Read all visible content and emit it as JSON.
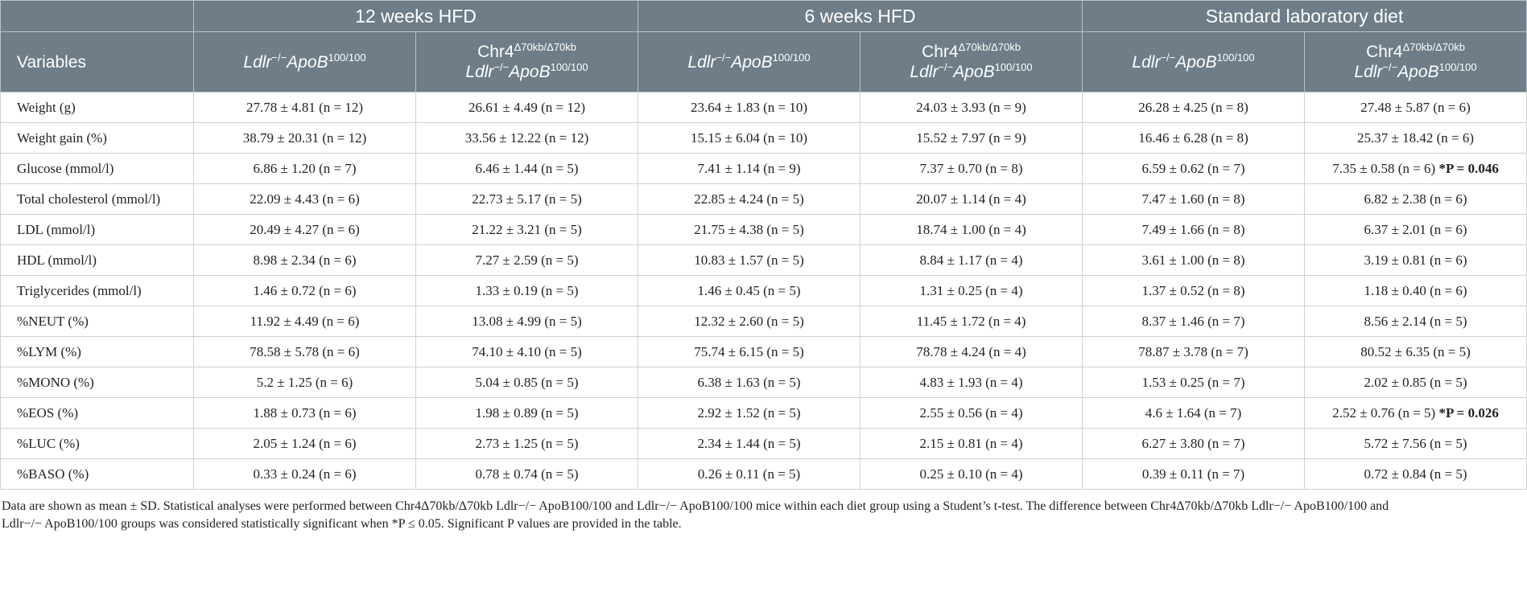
{
  "groups": [
    "12 weeks HFD",
    "6 weeks HFD",
    "Standard laboratory diet"
  ],
  "header": {
    "variables": "Variables",
    "col_wt": "Ldlr−/−ApoB100/100",
    "col_ko_line1": "Chr4Δ70kb/Δ70kb",
    "col_ko_line2": "Ldlr−/−ApoB100/100"
  },
  "rows": [
    {
      "label": "Weight (g)",
      "cells": [
        "27.78 ± 4.81 (n = 12)",
        "26.61 ± 4.49 (n = 12)",
        "23.64 ± 1.83 (n = 10)",
        "24.03 ± 3.93 (n = 9)",
        "26.28 ± 4.25 (n = 8)",
        "27.48 ± 5.87 (n = 6)"
      ]
    },
    {
      "label": "Weight gain (%)",
      "cells": [
        "38.79 ± 20.31 (n = 12)",
        "33.56 ± 12.22 (n = 12)",
        "15.15 ± 6.04 (n = 10)",
        "15.52 ± 7.97 (n = 9)",
        "16.46 ± 6.28 (n = 8)",
        "25.37 ± 18.42 (n = 6)"
      ]
    },
    {
      "label": "Glucose (mmol/l)",
      "cells": [
        "6.86 ± 1.20 (n = 7)",
        "6.46 ± 1.44 (n = 5)",
        "7.41 ± 1.14 (n = 9)",
        "7.37 ± 0.70 (n = 8)",
        "6.59 ± 0.62 (n = 7)",
        "7.35 ± 0.58 (n = 6)"
      ],
      "sig": "*P = 0.046"
    },
    {
      "label": "Total cholesterol (mmol/l)",
      "cells": [
        "22.09 ± 4.43 (n = 6)",
        "22.73 ± 5.17 (n = 5)",
        "22.85 ± 4.24 (n = 5)",
        "20.07 ± 1.14 (n = 4)",
        "7.47 ± 1.60 (n = 8)",
        "6.82 ± 2.38 (n = 6)"
      ]
    },
    {
      "label": "LDL (mmol/l)",
      "cells": [
        "20.49 ± 4.27 (n = 6)",
        "21.22 ± 3.21 (n = 5)",
        "21.75 ± 4.38 (n = 5)",
        "18.74 ± 1.00 (n = 4)",
        "7.49 ± 1.66 (n = 8)",
        "6.37 ± 2.01 (n = 6)"
      ]
    },
    {
      "label": "HDL (mmol/l)",
      "cells": [
        "8.98 ± 2.34 (n = 6)",
        "7.27 ± 2.59 (n = 5)",
        "10.83 ± 1.57 (n = 5)",
        "8.84 ± 1.17 (n = 4)",
        "3.61 ± 1.00 (n = 8)",
        "3.19 ± 0.81 (n = 6)"
      ]
    },
    {
      "label": "Triglycerides (mmol/l)",
      "cells": [
        "1.46 ± 0.72 (n = 6)",
        "1.33 ± 0.19 (n = 5)",
        "1.46 ± 0.45 (n = 5)",
        "1.31 ± 0.25 (n = 4)",
        "1.37 ± 0.52 (n = 8)",
        "1.18 ± 0.40 (n = 6)"
      ]
    },
    {
      "label": "%NEUT (%)",
      "cells": [
        "11.92 ± 4.49 (n = 6)",
        "13.08 ± 4.99 (n = 5)",
        "12.32 ± 2.60 (n = 5)",
        "11.45 ± 1.72 (n = 4)",
        "8.37 ± 1.46 (n = 7)",
        "8.56 ± 2.14 (n = 5)"
      ]
    },
    {
      "label": "%LYM (%)",
      "cells": [
        "78.58 ± 5.78 (n = 6)",
        "74.10 ± 4.10 (n = 5)",
        "75.74 ± 6.15 (n = 5)",
        "78.78 ± 4.24 (n = 4)",
        "78.87 ± 3.78 (n = 7)",
        "80.52 ± 6.35 (n = 5)"
      ]
    },
    {
      "label": "%MONO (%)",
      "cells": [
        "5.2 ± 1.25 (n = 6)",
        "5.04 ± 0.85 (n = 5)",
        "6.38 ± 1.63 (n = 5)",
        "4.83 ± 1.93 (n = 4)",
        "1.53 ± 0.25 (n = 7)",
        "2.02 ± 0.85 (n = 5)"
      ]
    },
    {
      "label": "%EOS (%)",
      "cells": [
        "1.88 ± 0.73 (n = 6)",
        "1.98 ± 0.89 (n = 5)",
        "2.92 ± 1.52 (n = 5)",
        "2.55 ± 0.56 (n = 4)",
        "4.6 ± 1.64 (n = 7)",
        "2.52 ± 0.76 (n = 5)"
      ],
      "sig": "*P = 0.026"
    },
    {
      "label": "%LUC (%)",
      "cells": [
        "2.05 ± 1.24 (n = 6)",
        "2.73 ± 1.25 (n = 5)",
        "2.34 ± 1.44 (n = 5)",
        "2.15 ± 0.81 (n = 4)",
        "6.27 ± 3.80 (n = 7)",
        "5.72 ± 7.56 (n = 5)"
      ]
    },
    {
      "label": "%BASO (%)",
      "cells": [
        "0.33 ± 0.24 (n = 6)",
        "0.78 ± 0.74 (n = 5)",
        "0.26 ± 0.11 (n = 5)",
        "0.25 ± 0.10 (n = 4)",
        "0.39 ± 0.11 (n = 7)",
        "0.72 ± 0.84 (n = 5)"
      ]
    }
  ],
  "footnote": {
    "line1": "Data are shown as mean ± SD. Statistical analyses were performed between Chr4Δ70kb/Δ70kb Ldlr−/− ApoB100/100 and Ldlr−/− ApoB100/100 mice within each diet group using a Student’s t-test. The difference between Chr4Δ70kb/Δ70kb Ldlr−/− ApoB100/100 and",
    "line2": "Ldlr−/− ApoB100/100 groups was considered statistically significant when *P ≤ 0.05. Significant P values are provided in the table."
  }
}
